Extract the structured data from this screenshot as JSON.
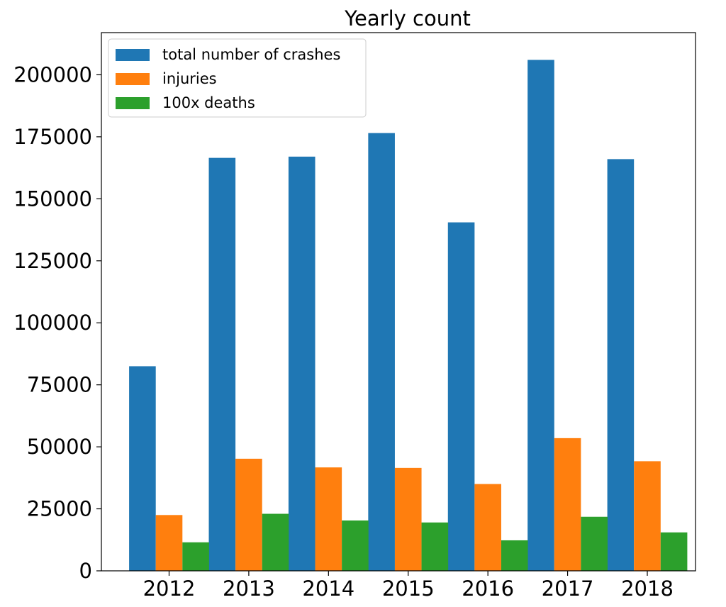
{
  "chart_data": {
    "type": "bar",
    "title": "Yearly count",
    "xlabel": "",
    "ylabel": "",
    "categories": [
      "2012",
      "2013",
      "2014",
      "2015",
      "2016",
      "2017",
      "2018"
    ],
    "ylim": [
      0,
      217000
    ],
    "yticks": [
      0,
      25000,
      50000,
      75000,
      100000,
      125000,
      150000,
      175000,
      200000
    ],
    "series": [
      {
        "name": "total number of crashes",
        "color": "#1f77b4",
        "values": [
          82500,
          166500,
          167000,
          176500,
          140500,
          206000,
          166000
        ]
      },
      {
        "name": "injuries",
        "color": "#ff7f0e",
        "values": [
          22500,
          45200,
          41700,
          41500,
          35000,
          53500,
          44200
        ]
      },
      {
        "name": "100x deaths",
        "color": "#2ca02c",
        "values": [
          11500,
          23000,
          20300,
          19500,
          12300,
          21800,
          15500
        ]
      }
    ],
    "legend": "top-left",
    "grid": false
  }
}
